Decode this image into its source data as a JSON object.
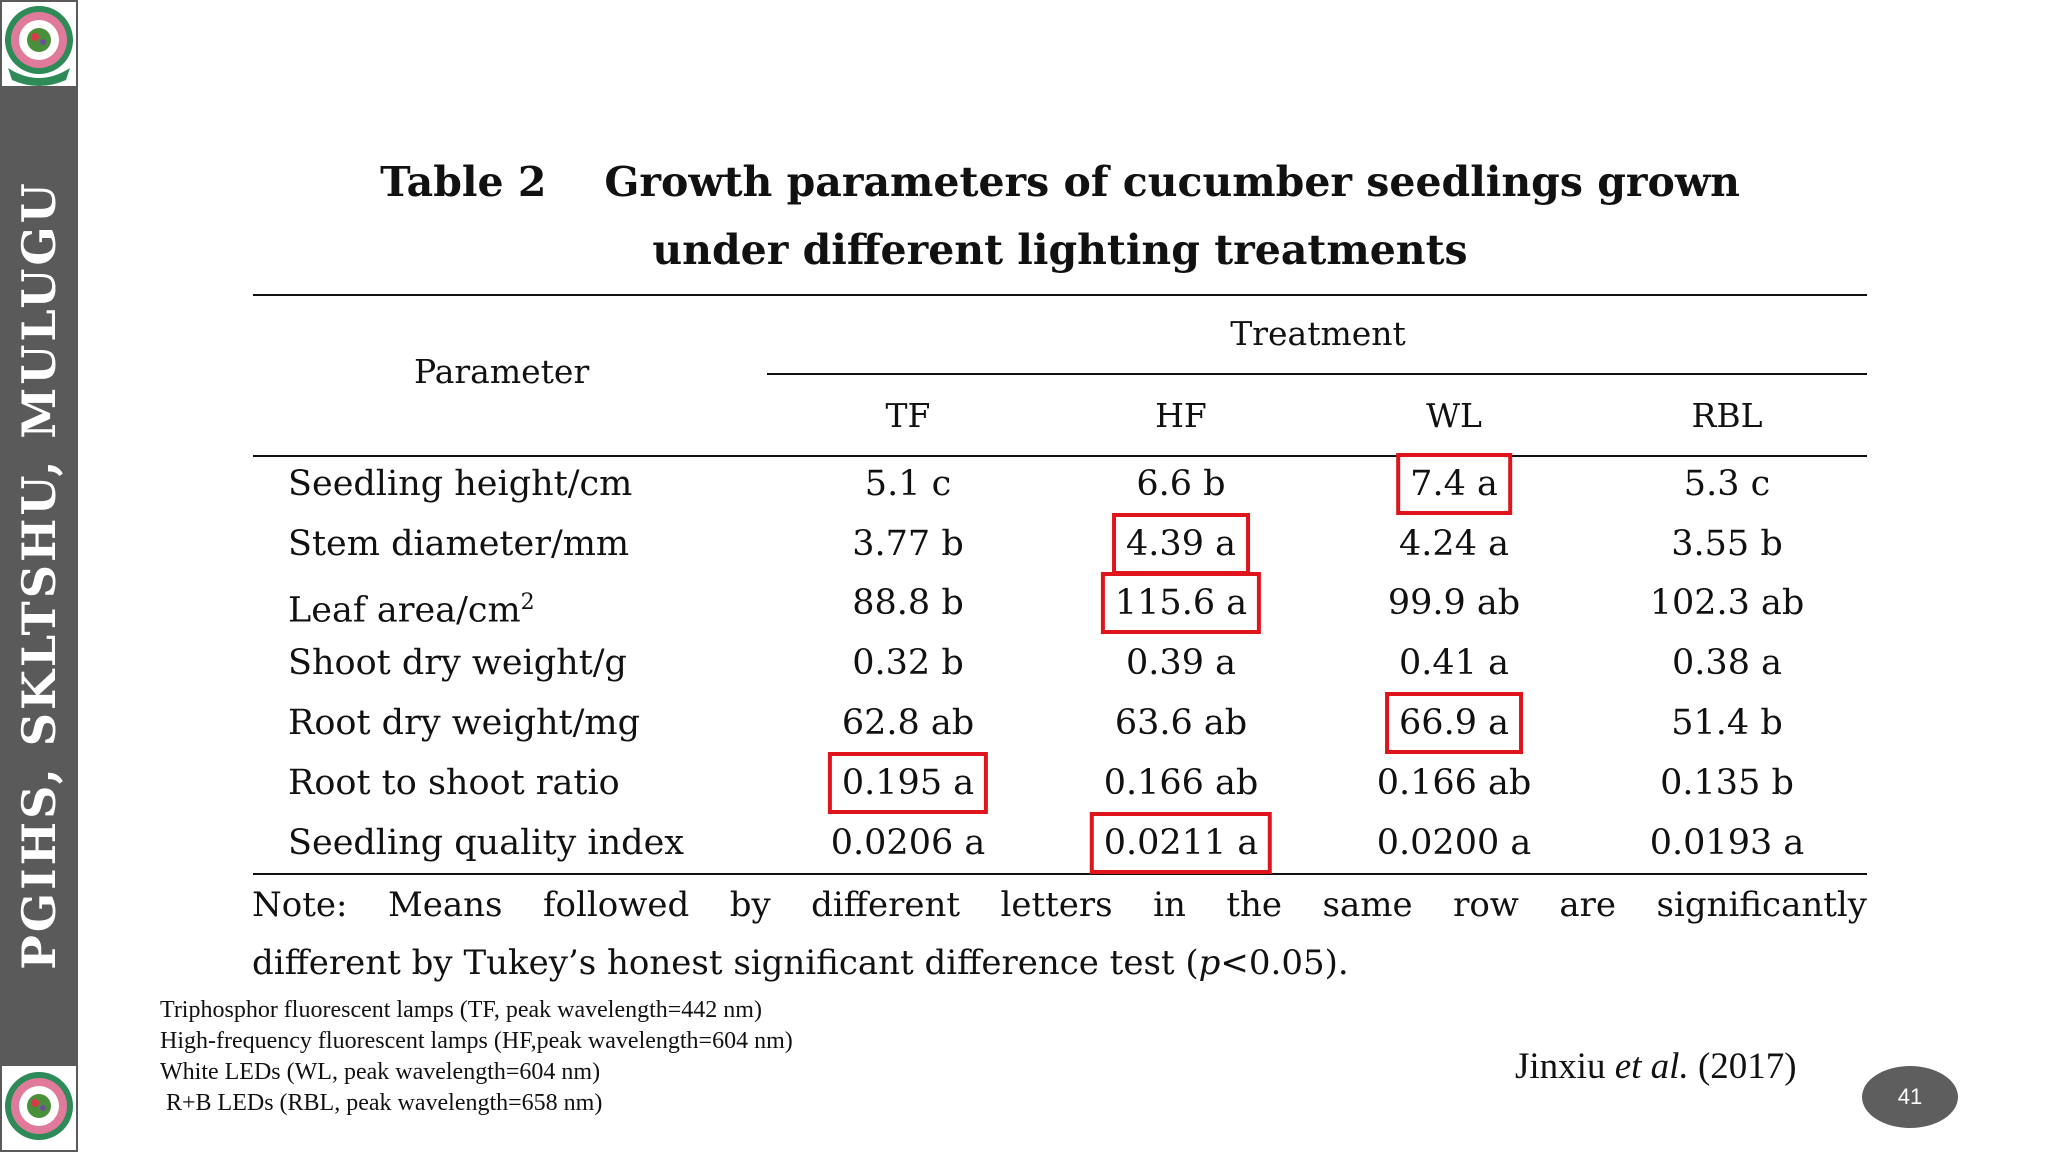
{
  "sidebar": {
    "text": "PGIHS, SKLTSHU, MULUGU",
    "logo_icon": "university-emblem-icon"
  },
  "table": {
    "title_label": "Table 2",
    "title_line1": "Growth parameters of cucumber seedlings grown",
    "title_line2": "under different lighting treatments",
    "param_header": "Parameter",
    "treatment_header": "Treatment",
    "columns": [
      "TF",
      "HF",
      "WL",
      "RBL"
    ],
    "rows": [
      {
        "label": "Seedling height/cm",
        "label_sup": "",
        "values": [
          "5.1 c",
          "6.6 b",
          "7.4 a",
          "5.3 c"
        ],
        "highlight": [
          false,
          false,
          true,
          false
        ]
      },
      {
        "label": "Stem diameter/mm",
        "label_sup": "",
        "values": [
          "3.77 b",
          "4.39 a",
          "4.24 a",
          "3.55 b"
        ],
        "highlight": [
          false,
          true,
          false,
          false
        ]
      },
      {
        "label": "Leaf area/cm",
        "label_sup": "2",
        "values": [
          "88.8 b",
          "115.6 a",
          "99.9 ab",
          "102.3 ab"
        ],
        "highlight": [
          false,
          true,
          false,
          false
        ]
      },
      {
        "label": "Shoot dry weight/g",
        "label_sup": "",
        "values": [
          "0.32 b",
          "0.39 a",
          "0.41 a",
          "0.38 a"
        ],
        "highlight": [
          false,
          false,
          false,
          false
        ]
      },
      {
        "label": "Root dry weight/mg",
        "label_sup": "",
        "values": [
          "62.8 ab",
          "63.6 ab",
          "66.9 a",
          "51.4 b"
        ],
        "highlight": [
          false,
          false,
          true,
          false
        ]
      },
      {
        "label": "Root to shoot ratio",
        "label_sup": "",
        "values": [
          "0.195 a",
          "0.166 ab",
          "0.166 ab",
          "0.135 b"
        ],
        "highlight": [
          true,
          false,
          false,
          false
        ]
      },
      {
        "label": "Seedling quality index",
        "label_sup": "",
        "values": [
          "0.0206 a",
          "0.0211 a",
          "0.0200 a",
          "0.0193 a"
        ],
        "highlight": [
          false,
          true,
          false,
          false
        ]
      }
    ],
    "note_line1": [
      "Note:",
      "Means",
      "followed",
      "by",
      "different",
      "letters",
      "in",
      "the",
      "same",
      "row",
      "are",
      "significantly"
    ],
    "note_line2_pre": "different by Tukey’s honest significant difference test (",
    "note_line2_p": "p",
    "note_line2_post": "<0.05).",
    "highlight_color": "#e0141c"
  },
  "legend": [
    "Triphosphor fluorescent lamps (TF, peak wavelength=442 nm)",
    "High-frequency fluorescent lamps (HF,peak wavelength=604 nm)",
    "White LEDs (WL, peak wavelength=604 nm)",
    " R+B LEDs (RBL, peak wavelength=658 nm)"
  ],
  "citation": {
    "author": "Jinxiu ",
    "etal": "et al.",
    "year": " (2017)"
  },
  "page_number": "41",
  "colors": {
    "sidebar": "#5a5a5a",
    "badge": "#5e5e5e"
  }
}
